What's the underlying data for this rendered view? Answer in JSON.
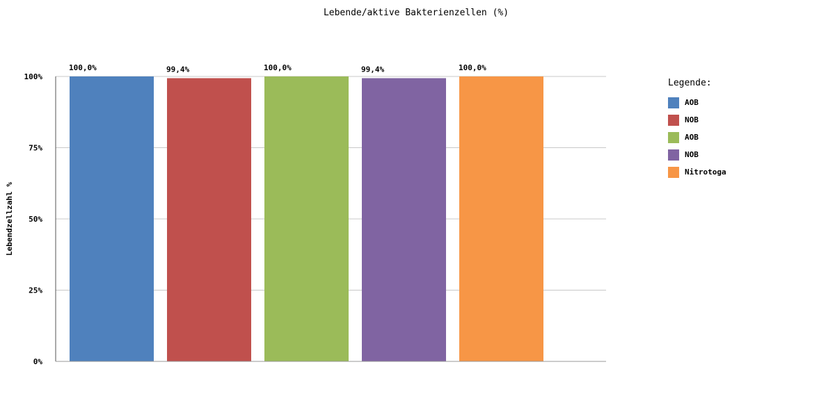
{
  "chart_data": {
    "type": "bar",
    "title": "Lebende/aktive Bakterienzellen (%)",
    "ylabel": "Lebendzellzahl %",
    "xlabel": "",
    "ylim": [
      0,
      100
    ],
    "yticks": [
      0,
      25,
      50,
      75,
      100
    ],
    "ytick_labels": [
      "0%",
      "25%",
      "50%",
      "75%",
      "100%"
    ],
    "grid": true,
    "legend": {
      "title": "Legende:",
      "placement": "right"
    },
    "bars": [
      {
        "name": "AOB",
        "value": 100.0,
        "label": "100,0%",
        "color": "#4f81bd"
      },
      {
        "name": "NOB",
        "value": 99.4,
        "label": "99,4%",
        "color": "#c0504d"
      },
      {
        "name": "AOB",
        "value": 100.0,
        "label": "100,0%",
        "color": "#9bbb59"
      },
      {
        "name": "NOB",
        "value": 99.4,
        "label": "99,4%",
        "color": "#8064a2"
      },
      {
        "name": "Nitrotoga",
        "value": 100.0,
        "label": "100,0%",
        "color": "#f79646"
      }
    ]
  }
}
